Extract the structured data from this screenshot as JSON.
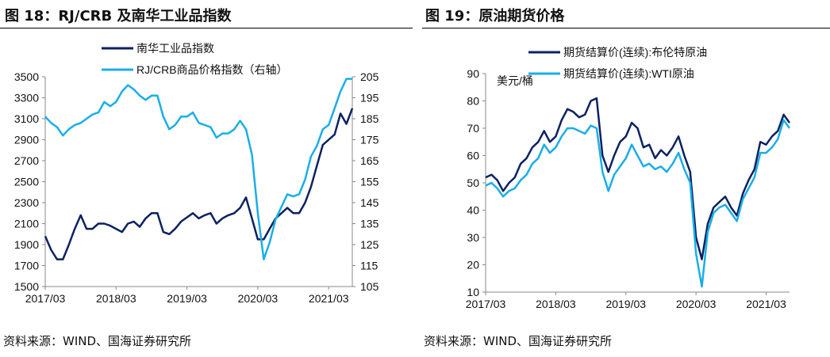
{
  "colors": {
    "dark": "#0c2260",
    "light": "#19aee8",
    "axis": "#888888"
  },
  "source_left": "资料来源：WIND、国海证券研究所",
  "source_right": "资料来源：WIND、国海证券研究所",
  "chart_data": [
    {
      "type": "line",
      "title": "图 18：RJ/CRB 及南华工业品指数",
      "x": [
        "2017/03",
        "2017/04",
        "2017/05",
        "2017/06",
        "2017/07",
        "2017/08",
        "2017/09",
        "2017/10",
        "2017/11",
        "2017/12",
        "2018/01",
        "2018/02",
        "2018/03",
        "2018/04",
        "2018/05",
        "2018/06",
        "2018/07",
        "2018/08",
        "2018/09",
        "2018/10",
        "2018/11",
        "2018/12",
        "2019/01",
        "2019/02",
        "2019/03",
        "2019/04",
        "2019/05",
        "2019/06",
        "2019/07",
        "2019/08",
        "2019/09",
        "2019/10",
        "2019/11",
        "2019/12",
        "2020/01",
        "2020/02",
        "2020/03",
        "2020/04",
        "2020/05",
        "2020/06",
        "2020/07",
        "2020/08",
        "2020/09",
        "2020/10",
        "2020/11",
        "2020/12",
        "2021/01",
        "2021/02",
        "2021/03",
        "2021/04",
        "2021/05",
        "2021/06",
        "2021/07"
      ],
      "xticks": [
        "2017/03",
        "2018/03",
        "2019/03",
        "2020/03",
        "2021/03"
      ],
      "ylim": [
        1500,
        3500
      ],
      "yticks": [
        1500,
        1700,
        1900,
        2100,
        2300,
        2500,
        2700,
        2900,
        3100,
        3300,
        3500
      ],
      "y2lim": [
        105,
        205
      ],
      "y2ticks": [
        105,
        115,
        125,
        135,
        145,
        155,
        165,
        175,
        185,
        195,
        205
      ],
      "series": [
        {
          "name": "南华工业品指数",
          "axis": "left",
          "color": "#0c2260",
          "values": [
            1980,
            1850,
            1760,
            1760,
            1900,
            2050,
            2180,
            2050,
            2050,
            2100,
            2100,
            2080,
            2050,
            2020,
            2100,
            2120,
            2070,
            2150,
            2200,
            2200,
            2020,
            2000,
            2050,
            2120,
            2160,
            2200,
            2150,
            2180,
            2200,
            2100,
            2150,
            2180,
            2200,
            2250,
            2350,
            2150,
            1950,
            1950,
            2050,
            2150,
            2200,
            2250,
            2200,
            2200,
            2300,
            2450,
            2650,
            2850,
            2900,
            2950,
            3150,
            3050,
            3200
          ]
        },
        {
          "name": "RJ/CRB商品价格指数（右轴）",
          "axis": "right",
          "color": "#19aee8",
          "values": [
            186,
            183,
            181,
            177,
            180,
            182,
            183,
            185,
            187,
            188,
            193,
            191,
            193,
            198,
            201,
            199,
            196,
            194,
            196,
            196,
            186,
            180,
            182,
            186,
            186,
            188,
            183,
            182,
            181,
            176,
            178,
            178,
            180,
            184,
            180,
            168,
            140,
            118,
            126,
            137,
            143,
            149,
            148,
            149,
            156,
            167,
            172,
            180,
            182,
            190,
            198,
            204,
            204
          ]
        }
      ]
    },
    {
      "type": "line",
      "title": "图 19：原油期货价格",
      "ylabel": "美元/桶",
      "x": [
        "2017/03",
        "2017/04",
        "2017/05",
        "2017/06",
        "2017/07",
        "2017/08",
        "2017/09",
        "2017/10",
        "2017/11",
        "2017/12",
        "2018/01",
        "2018/02",
        "2018/03",
        "2018/04",
        "2018/05",
        "2018/06",
        "2018/07",
        "2018/08",
        "2018/09",
        "2018/10",
        "2018/11",
        "2018/12",
        "2019/01",
        "2019/02",
        "2019/03",
        "2019/04",
        "2019/05",
        "2019/06",
        "2019/07",
        "2019/08",
        "2019/09",
        "2019/10",
        "2019/11",
        "2019/12",
        "2020/01",
        "2020/02",
        "2020/03",
        "2020/04",
        "2020/05",
        "2020/06",
        "2020/07",
        "2020/08",
        "2020/09",
        "2020/10",
        "2020/11",
        "2020/12",
        "2021/01",
        "2021/02",
        "2021/03",
        "2021/04",
        "2021/05",
        "2021/06",
        "2021/07"
      ],
      "xticks": [
        "2017/03",
        "2018/03",
        "2019/03",
        "2020/03",
        "2021/03"
      ],
      "ylim": [
        10,
        90
      ],
      "yticks": [
        10,
        20,
        30,
        40,
        50,
        60,
        70,
        80,
        90
      ],
      "series": [
        {
          "name": "期货结算价(连续):布伦特原油",
          "color": "#0c2260",
          "values": [
            52,
            53,
            51,
            47,
            50,
            52,
            57,
            59,
            63,
            65,
            69,
            65,
            67,
            73,
            77,
            76,
            74,
            75,
            80,
            81,
            60,
            54,
            60,
            65,
            67,
            72,
            70,
            63,
            64,
            59,
            62,
            60,
            63,
            67,
            60,
            54,
            30,
            22,
            35,
            41,
            43,
            45,
            41,
            38,
            46,
            51,
            55,
            65,
            64,
            67,
            69,
            75,
            72
          ]
        },
        {
          "name": "期货结算价(连续):WTI原油",
          "color": "#19aee8",
          "values": [
            49,
            50,
            48,
            45,
            47,
            48,
            51,
            53,
            57,
            59,
            64,
            61,
            63,
            67,
            70,
            70,
            69,
            68,
            71,
            70,
            54,
            47,
            53,
            56,
            59,
            64,
            60,
            56,
            57,
            55,
            56,
            54,
            57,
            61,
            55,
            50,
            24,
            12,
            32,
            39,
            41,
            42,
            39,
            36,
            44,
            48,
            52,
            61,
            61,
            63,
            66,
            73,
            70
          ]
        }
      ]
    }
  ]
}
